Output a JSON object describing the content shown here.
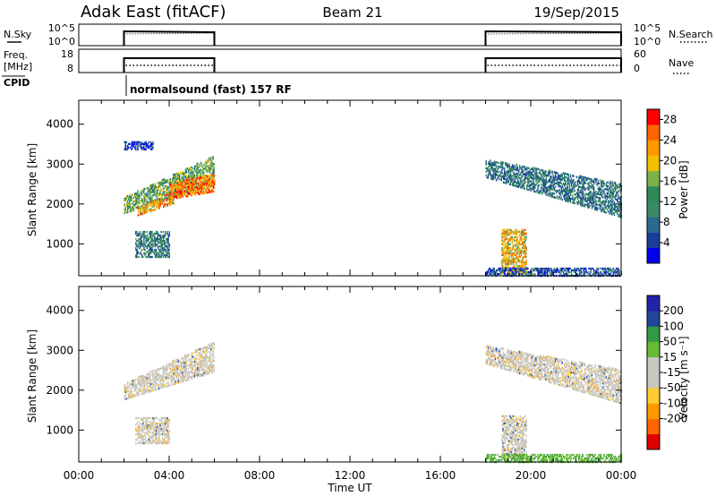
{
  "header": {
    "station": "Adak East (fitACF)",
    "beam": "Beam 21",
    "date": "19/Sep/2015"
  },
  "nsky_panel": {
    "left_label": "N.Sky",
    "left_ticks": [
      "10^5",
      "10^0"
    ],
    "right_label": "N.Search",
    "right_ticks": [
      "10^5",
      "10^0"
    ]
  },
  "freq_panel": {
    "left_label_1": "Freq.",
    "left_label_2": "[MHz]",
    "left_ticks": [
      "18",
      "8"
    ],
    "right_label": "Nave",
    "right_ticks": [
      "60",
      "0"
    ]
  },
  "cpid_panel": {
    "label": "CPID",
    "text": "normalsound (fast) 157 RF"
  },
  "x_axis": {
    "ticks": [
      "00:00",
      "04:00",
      "08:00",
      "12:00",
      "16:00",
      "20:00",
      "00:00"
    ],
    "label": "Time UT"
  },
  "colors": {
    "power_scale": [
      "#0000ee",
      "#1a3f9a",
      "#2a6a8e",
      "#3a8a6a",
      "#2e8b57",
      "#7ab34a",
      "#f0c000",
      "#ff9900",
      "#ff6600",
      "#ff0000"
    ],
    "velocity_scale": [
      "#e00000",
      "#ff6600",
      "#ff9a00",
      "#ffcc33",
      "#c8c8c0",
      "#c8c8c0",
      "#66bb33",
      "#339944",
      "#224499",
      "#2222aa"
    ],
    "ground_scatter": "#c8c6bd"
  },
  "chart_data": [
    {
      "type": "heatmap",
      "name": "power",
      "ylabel": "Slant Range [km]",
      "y_ticks": [
        1000,
        2000,
        3000,
        4000
      ],
      "ylim": [
        200,
        4600
      ],
      "xlim_hours": [
        0,
        24
      ],
      "colorbar_label": "Power [dB]",
      "colorbar_ticks": [
        4,
        8,
        12,
        16,
        20,
        24,
        28
      ],
      "colorbar_range": [
        0,
        30
      ],
      "operating_intervals_hours": [
        [
          2,
          6
        ],
        [
          18,
          24
        ]
      ],
      "echo_regions": [
        {
          "t0": 2.0,
          "t1": 6.0,
          "r0_start": 1750,
          "r1_start": 2150,
          "r0_end": 2450,
          "r1_end": 3200,
          "power": 14
        },
        {
          "t0": 2.6,
          "t1": 4.2,
          "r0_start": 1700,
          "r1_start": 1900,
          "r0_end": 2000,
          "r1_end": 2300,
          "power": 22
        },
        {
          "t0": 4.0,
          "t1": 6.0,
          "r0_start": 2100,
          "r1_start": 2500,
          "r0_end": 2300,
          "r1_end": 2750,
          "power": 24
        },
        {
          "t0": 2.5,
          "t1": 4.0,
          "r0_start": 650,
          "r1_start": 1300,
          "r0_end": 650,
          "r1_end": 1300,
          "power": 10
        },
        {
          "t0": 2.0,
          "t1": 3.3,
          "r0_start": 3350,
          "r1_start": 3550,
          "r0_end": 3350,
          "r1_end": 3550,
          "power": 3
        },
        {
          "t0": 18.0,
          "t1": 24.0,
          "r0_start": 2650,
          "r1_start": 3100,
          "r0_end": 1650,
          "r1_end": 2500,
          "power": 9
        },
        {
          "t0": 18.7,
          "t1": 19.8,
          "r0_start": 250,
          "r1_start": 1350,
          "r0_end": 250,
          "r1_end": 1350,
          "power": 20
        },
        {
          "t0": 18.0,
          "t1": 24.0,
          "r0_start": 180,
          "r1_start": 380,
          "r0_end": 180,
          "r1_end": 380,
          "power": 6
        }
      ]
    },
    {
      "type": "heatmap",
      "name": "velocity",
      "ylabel": "Slant Range [km]",
      "y_ticks": [
        1000,
        2000,
        3000,
        4000
      ],
      "ylim": [
        200,
        4600
      ],
      "xlim_hours": [
        0,
        24
      ],
      "colorbar_label": "Velocity [m s⁻¹]",
      "colorbar_ticks": [
        200,
        100,
        50,
        15,
        -15,
        -50,
        -100,
        -200
      ],
      "operating_intervals_hours": [
        [
          2,
          6
        ],
        [
          18,
          24
        ]
      ],
      "echo_regions": [
        {
          "t0": 2.0,
          "t1": 6.0,
          "r0_start": 1750,
          "r1_start": 2150,
          "r0_end": 2450,
          "r1_end": 3200,
          "velocity": 0
        },
        {
          "t0": 2.5,
          "t1": 4.0,
          "r0_start": 650,
          "r1_start": 1300,
          "r0_end": 650,
          "r1_end": 1300,
          "velocity": 0
        },
        {
          "t0": 18.0,
          "t1": 24.0,
          "r0_start": 2650,
          "r1_start": 3100,
          "r0_end": 1650,
          "r1_end": 2500,
          "velocity": 0
        },
        {
          "t0": 18.7,
          "t1": 19.8,
          "r0_start": 250,
          "r1_start": 1350,
          "r0_end": 250,
          "r1_end": 1350,
          "velocity": 0
        },
        {
          "t0": 18.0,
          "t1": 24.0,
          "r0_start": 180,
          "r1_start": 380,
          "r0_end": 180,
          "r1_end": 380,
          "velocity": 40
        }
      ]
    }
  ]
}
